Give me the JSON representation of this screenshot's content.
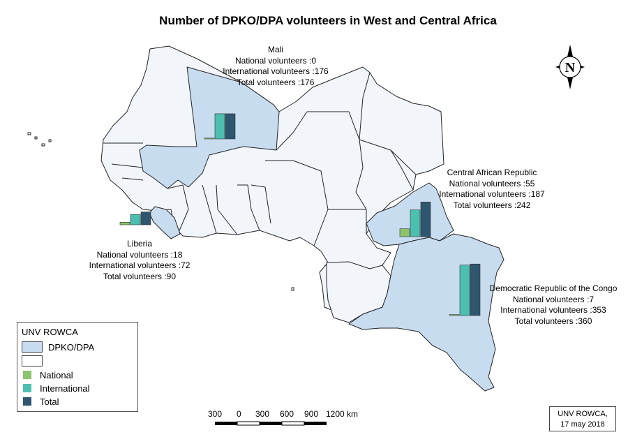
{
  "title": "Number of DPKO/DPA volunteers in West and Central Africa",
  "colors": {
    "dpko": "#c8dcf0",
    "other": "#f2f6fb",
    "border": "#222222",
    "national": "#8cc46e",
    "international": "#4cbfb0",
    "total": "#2e566e"
  },
  "annotations": {
    "mali": {
      "name": "Mali",
      "national": "National volunteers :0",
      "international": "International volunteers :176",
      "total": "Total volunteers :176"
    },
    "car": {
      "name": "Central African Republic",
      "national": "National volunteers :55",
      "international": "International volunteers :187",
      "total": "Total volunteers :242"
    },
    "liberia": {
      "name": "Liberia",
      "national": "National volunteers :18",
      "international": "International volunteers :72",
      "total": "Total volunteers :90"
    },
    "drc": {
      "name": "Democratic Republic of the Congo",
      "national": "National volunteers :7",
      "international": "International volunteers :353",
      "total": "Total volunteers :360"
    }
  },
  "chart_data": {
    "type": "bar",
    "title": "Number of DPKO/DPA volunteers in West and Central Africa",
    "categories": [
      "Mali",
      "Central African Republic",
      "Liberia",
      "Democratic Republic of the Congo"
    ],
    "series": [
      {
        "name": "National",
        "values": [
          0,
          55,
          18,
          7
        ]
      },
      {
        "name": "International",
        "values": [
          176,
          187,
          72,
          353
        ]
      },
      {
        "name": "Total",
        "values": [
          176,
          242,
          90,
          360
        ]
      }
    ]
  },
  "legend": {
    "header": "UNV ROWCA",
    "items": [
      {
        "label": "DPKO/DPA",
        "kind": "poly",
        "color": "#c8dcf0"
      },
      {
        "label": "",
        "kind": "poly",
        "color": "#ffffff"
      },
      {
        "label": "National",
        "kind": "bar",
        "color": "#8cc46e"
      },
      {
        "label": "International",
        "kind": "bar",
        "color": "#4cbfb0"
      },
      {
        "label": "Total",
        "kind": "bar",
        "color": "#2e566e"
      }
    ]
  },
  "scalebar": {
    "labels": [
      "300",
      "0",
      "300",
      "600",
      "900",
      "1200 km"
    ]
  },
  "north_arrow": {
    "letter": "N"
  },
  "credit": {
    "line1": "UNV ROWCA,",
    "line2": "17 may 2018"
  }
}
